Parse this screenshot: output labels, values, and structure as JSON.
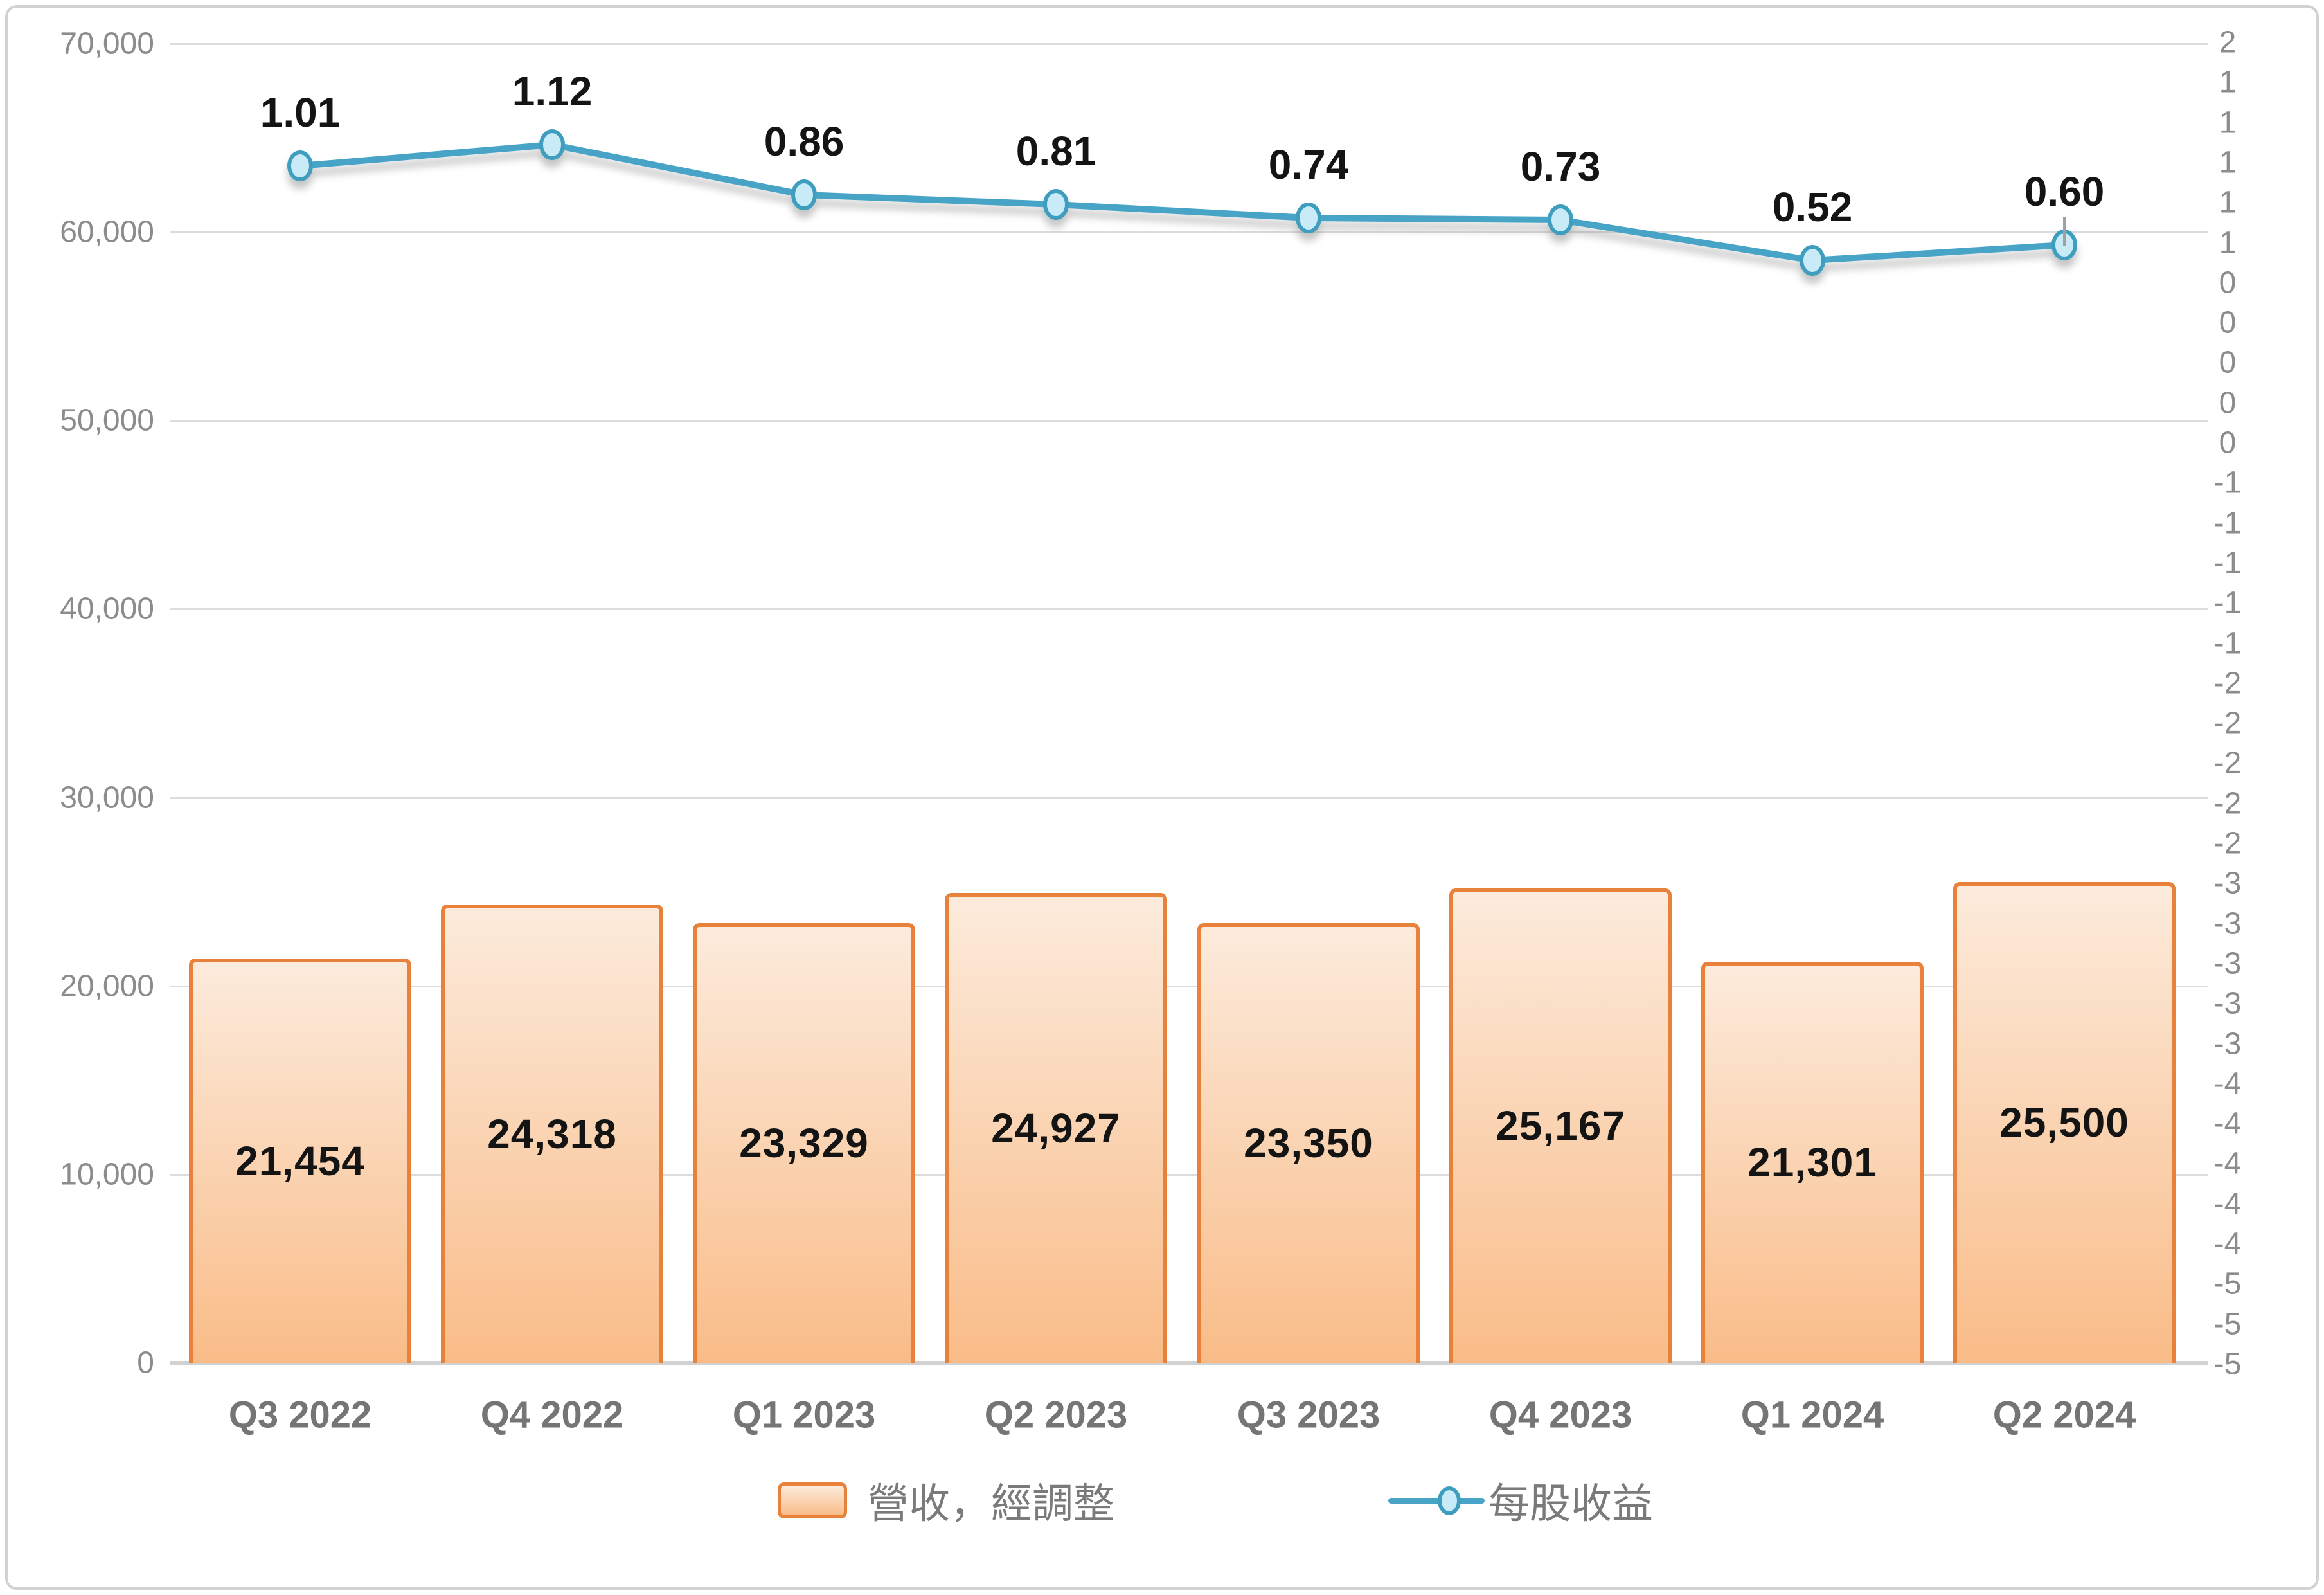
{
  "chart_data": {
    "type": "combo",
    "categories": [
      "Q3 2022",
      "Q4 2022",
      "Q1 2023",
      "Q2 2023",
      "Q3 2023",
      "Q4 2023",
      "Q1 2024",
      "Q2 2024"
    ],
    "series": [
      {
        "name": "營收，經調整",
        "type": "bar",
        "axis": "left",
        "values": [
          21454,
          24318,
          23329,
          24927,
          23350,
          25167,
          21301,
          25500
        ],
        "labels": [
          "21,454",
          "24,318",
          "23,329",
          "24,927",
          "23,350",
          "25,167",
          "21,301",
          "25,500"
        ]
      },
      {
        "name": "每股收益",
        "type": "line",
        "axis": "right",
        "values": [
          1.01,
          1.12,
          0.86,
          0.81,
          0.74,
          0.73,
          0.52,
          0.6
        ],
        "labels": [
          "1.01",
          "1.12",
          "0.86",
          "0.81",
          "0.74",
          "0.73",
          "0.52",
          "0.60"
        ]
      }
    ],
    "left_axis": {
      "range": [
        0,
        70000
      ],
      "tick_interval": 10000,
      "ticks": [
        "70,000",
        "60,000",
        "50,000",
        "40,000",
        "30,000",
        "20,000",
        "10,000",
        "0"
      ]
    },
    "right_axis": {
      "ticks": [
        "2",
        "1",
        "1",
        "1",
        "1",
        "1",
        "0",
        "0",
        "0",
        "0",
        "0",
        "-1",
        "-1",
        "-1",
        "-1",
        "-1",
        "-2",
        "-2",
        "-2",
        "-2",
        "-2",
        "-3",
        "-3",
        "-3",
        "-3",
        "-3",
        "-4",
        "-4",
        "-4",
        "-4",
        "-4",
        "-5",
        "-5",
        "-5"
      ]
    },
    "legend": {
      "position": "bottom",
      "entries": [
        {
          "label": "營收，經調整",
          "marker": "bar-swatch"
        },
        {
          "label": "每股收益",
          "marker": "line-marker"
        }
      ]
    },
    "grid": "horizontal",
    "title": "",
    "last_point_has_error_tick": true
  },
  "colors": {
    "bar_border": "#E8823A",
    "bar_fill_top": "#FCEBDC",
    "bar_fill_bottom": "#F9BC88",
    "line": "#47A4C6",
    "marker_fill": "#C9EAF7",
    "marker_stroke": "#3F9DBE",
    "error_tick": "#A0A0A0",
    "gridline": "#DCDCDC",
    "axis_line": "#D2D2D2",
    "axis_text": "#8C8C8C",
    "data_label": "#141414",
    "x_label": "#757575",
    "legend_text": "#7A7A7A"
  }
}
